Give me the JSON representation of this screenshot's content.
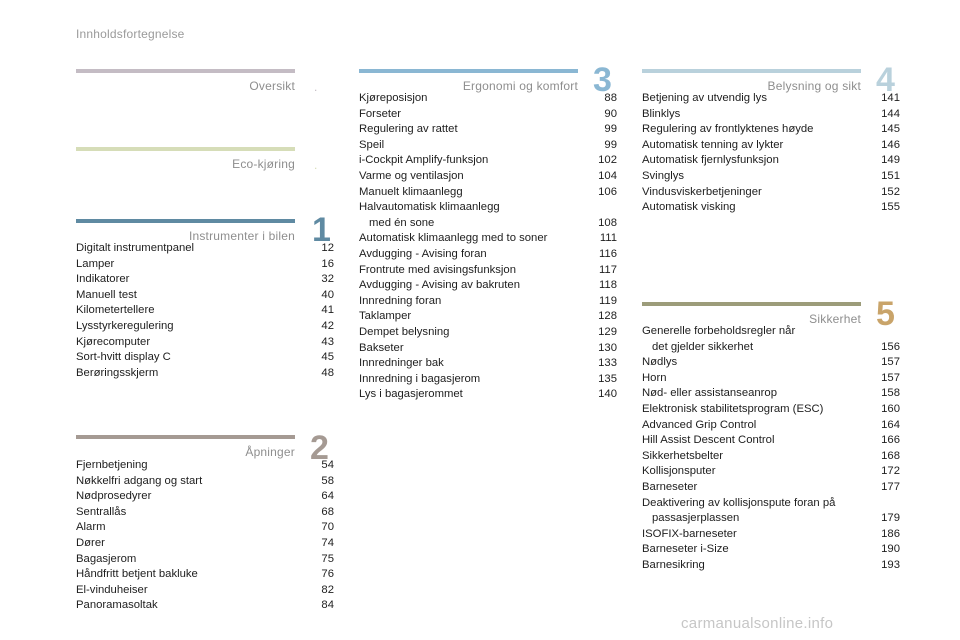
{
  "header": {
    "title": "Innholdsfortegnelse"
  },
  "colors": {
    "oversikt": "#c4bcc4",
    "eco": "#d6ddb8",
    "instrumenter": "#5f8aa2",
    "apninger": "#a59a93",
    "ergonomi": "#8ab7d3",
    "belysning": "#b9d1dc",
    "sikkerhet": "#9c9c7a"
  },
  "sections": {
    "oversikt": {
      "title": "Oversikt",
      "marker": "."
    },
    "eco": {
      "title": "Eco-kjøring",
      "marker": "."
    },
    "instrumenter": {
      "title": "Instrumenter i bilen",
      "number": "1",
      "items": [
        {
          "label": "Digitalt instrumentpanel",
          "page": "12"
        },
        {
          "label": "Lamper",
          "page": "16"
        },
        {
          "label": "Indikatorer",
          "page": "32"
        },
        {
          "label": "Manuell test",
          "page": "40"
        },
        {
          "label": "Kilometertellere",
          "page": "41"
        },
        {
          "label": "Lysstyrkeregulering",
          "page": "42"
        },
        {
          "label": "Kjørecomputer",
          "page": "43"
        },
        {
          "label": "Sort-hvitt display C",
          "page": "45"
        },
        {
          "label": "Berøringsskjerm",
          "page": "48"
        }
      ]
    },
    "apninger": {
      "title": "Åpninger",
      "number": "2",
      "items": [
        {
          "label": "Fjernbetjening",
          "page": "54"
        },
        {
          "label": "Nøkkelfri adgang og start",
          "page": "58"
        },
        {
          "label": "Nødprosedyrer",
          "page": "64"
        },
        {
          "label": "Sentrallås",
          "page": "68"
        },
        {
          "label": "Alarm",
          "page": "70"
        },
        {
          "label": "Dører",
          "page": "74"
        },
        {
          "label": "Bagasjerom",
          "page": "75"
        },
        {
          "label": "Håndfritt betjent bakluke",
          "page": "76"
        },
        {
          "label": "El-vinduheiser",
          "page": "82"
        },
        {
          "label": "Panoramasoltak",
          "page": "84"
        }
      ]
    },
    "ergonomi": {
      "title": "Ergonomi og komfort",
      "number": "3",
      "items": [
        {
          "label": "Kjøreposisjon",
          "page": "88"
        },
        {
          "label": "Forseter",
          "page": "90"
        },
        {
          "label": "Regulering av rattet",
          "page": "99"
        },
        {
          "label": "Speil",
          "page": "99"
        },
        {
          "label": "i-Cockpit Amplify-funksjon",
          "page": "102"
        },
        {
          "label": "Varme og ventilasjon",
          "page": "104"
        },
        {
          "label": "Manuelt klimaanlegg",
          "page": "106"
        },
        {
          "label": "Halvautomatisk klimaanlegg",
          "label2": "med én sone",
          "page": "108"
        },
        {
          "label": "Automatisk klimaanlegg med to soner",
          "page": "111"
        },
        {
          "label": "Avdugging - Avising foran",
          "page": "116"
        },
        {
          "label": "Frontrute med avisingsfunksjon",
          "page": "117"
        },
        {
          "label": "Avdugging - Avising av bakruten",
          "page": "118"
        },
        {
          "label": "Innredning foran",
          "page": "119"
        },
        {
          "label": "Taklamper",
          "page": "128"
        },
        {
          "label": "Dempet belysning",
          "page": "129"
        },
        {
          "label": "Bakseter",
          "page": "130"
        },
        {
          "label": "Innredninger bak",
          "page": "133"
        },
        {
          "label": "Innredning i bagasjerom",
          "page": "135"
        },
        {
          "label": "Lys i bagasjerommet",
          "page": "140"
        }
      ]
    },
    "belysning": {
      "title": "Belysning og sikt",
      "number": "4",
      "items": [
        {
          "label": "Betjening av utvendig lys",
          "page": "141"
        },
        {
          "label": "Blinklys",
          "page": "144"
        },
        {
          "label": "Regulering av frontlyktenes høyde",
          "page": "145"
        },
        {
          "label": "Automatisk tenning av lykter",
          "page": "146"
        },
        {
          "label": "Automatisk fjernlysfunksjon",
          "page": "149"
        },
        {
          "label": "Svinglys",
          "page": "151"
        },
        {
          "label": "Vindusviskerbetjeninger",
          "page": "152"
        },
        {
          "label": "Automatisk visking",
          "page": "155"
        }
      ]
    },
    "sikkerhet": {
      "title": "Sikkerhet",
      "number": "5",
      "items": [
        {
          "label": "Generelle forbeholdsregler når",
          "label2": "det gjelder sikkerhet",
          "page": "156"
        },
        {
          "label": "Nødlys",
          "page": "157"
        },
        {
          "label": "Horn",
          "page": "157"
        },
        {
          "label": "Nød- eller assistanseanrop",
          "page": "158"
        },
        {
          "label": "Elektronisk stabilitetsprogram (ESC)",
          "page": "160"
        },
        {
          "label": "Advanced Grip Control",
          "page": "164"
        },
        {
          "label": "Hill Assist Descent Control",
          "page": "166"
        },
        {
          "label": "Sikkerhetsbelter",
          "page": "168"
        },
        {
          "label": "Kollisjonsputer",
          "page": "172"
        },
        {
          "label": "Barneseter",
          "page": "177"
        },
        {
          "label": "Deaktivering av kollisjonspute foran på",
          "label2": "passasjerplassen",
          "page": "179"
        },
        {
          "label": "ISOFIX-barneseter",
          "page": "186"
        },
        {
          "label": "Barneseter i-Size",
          "page": "190"
        },
        {
          "label": "Barnesikring",
          "page": "193"
        }
      ]
    }
  },
  "watermark": "carmanualsonline.info"
}
